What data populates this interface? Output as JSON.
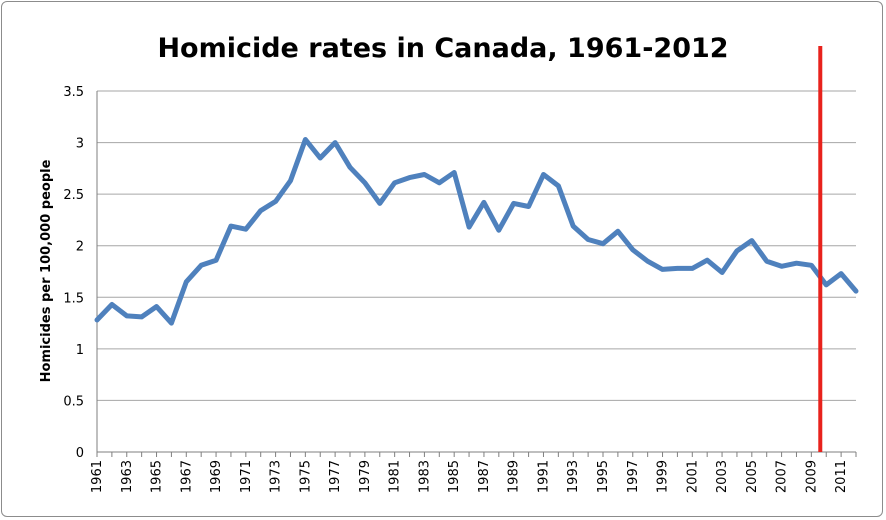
{
  "chart_data": {
    "type": "line",
    "title": "Homicide rates in Canada, 1961-2012",
    "xlabel": "",
    "ylabel": "Homicides per 100,000 people",
    "ylim": [
      0,
      3.5
    ],
    "yticks": [
      "0",
      "0.5",
      "1",
      "1.5",
      "2",
      "2.5",
      "3",
      "3.5"
    ],
    "x": [
      1961,
      1962,
      1963,
      1964,
      1965,
      1966,
      1967,
      1968,
      1969,
      1970,
      1971,
      1972,
      1973,
      1974,
      1975,
      1976,
      1977,
      1978,
      1979,
      1980,
      1981,
      1982,
      1983,
      1984,
      1985,
      1986,
      1987,
      1988,
      1989,
      1990,
      1991,
      1992,
      1993,
      1994,
      1995,
      1996,
      1997,
      1998,
      1999,
      2000,
      2001,
      2002,
      2003,
      2004,
      2005,
      2006,
      2007,
      2008,
      2009,
      2010,
      2011,
      2012
    ],
    "xtick_labels": [
      "1961",
      "1963",
      "1965",
      "1967",
      "1969",
      "1971",
      "1973",
      "1975",
      "1977",
      "1979",
      "1981",
      "1983",
      "1985",
      "1987",
      "1989",
      "1991",
      "1993",
      "1995",
      "1997",
      "1999",
      "2001",
      "2003",
      "2005",
      "2007",
      "2009",
      "2011"
    ],
    "series": [
      {
        "color": "#4f81bd",
        "values": [
          1.28,
          1.43,
          1.32,
          1.31,
          1.41,
          1.25,
          1.65,
          1.81,
          1.86,
          2.19,
          2.16,
          2.34,
          2.43,
          2.63,
          3.03,
          2.85,
          3.0,
          2.76,
          2.61,
          2.41,
          2.61,
          2.66,
          2.69,
          2.61,
          2.71,
          2.18,
          2.42,
          2.15,
          2.41,
          2.38,
          2.69,
          2.58,
          2.19,
          2.06,
          2.02,
          2.14,
          1.96,
          1.85,
          1.77,
          1.78,
          1.78,
          1.86,
          1.74,
          1.95,
          2.05,
          1.85,
          1.8,
          1.83,
          1.81,
          1.62,
          1.73,
          1.56
        ]
      }
    ],
    "marker_line": {
      "x": 2009.6,
      "color": "#e8221c"
    },
    "grid": true,
    "legend": "none"
  }
}
